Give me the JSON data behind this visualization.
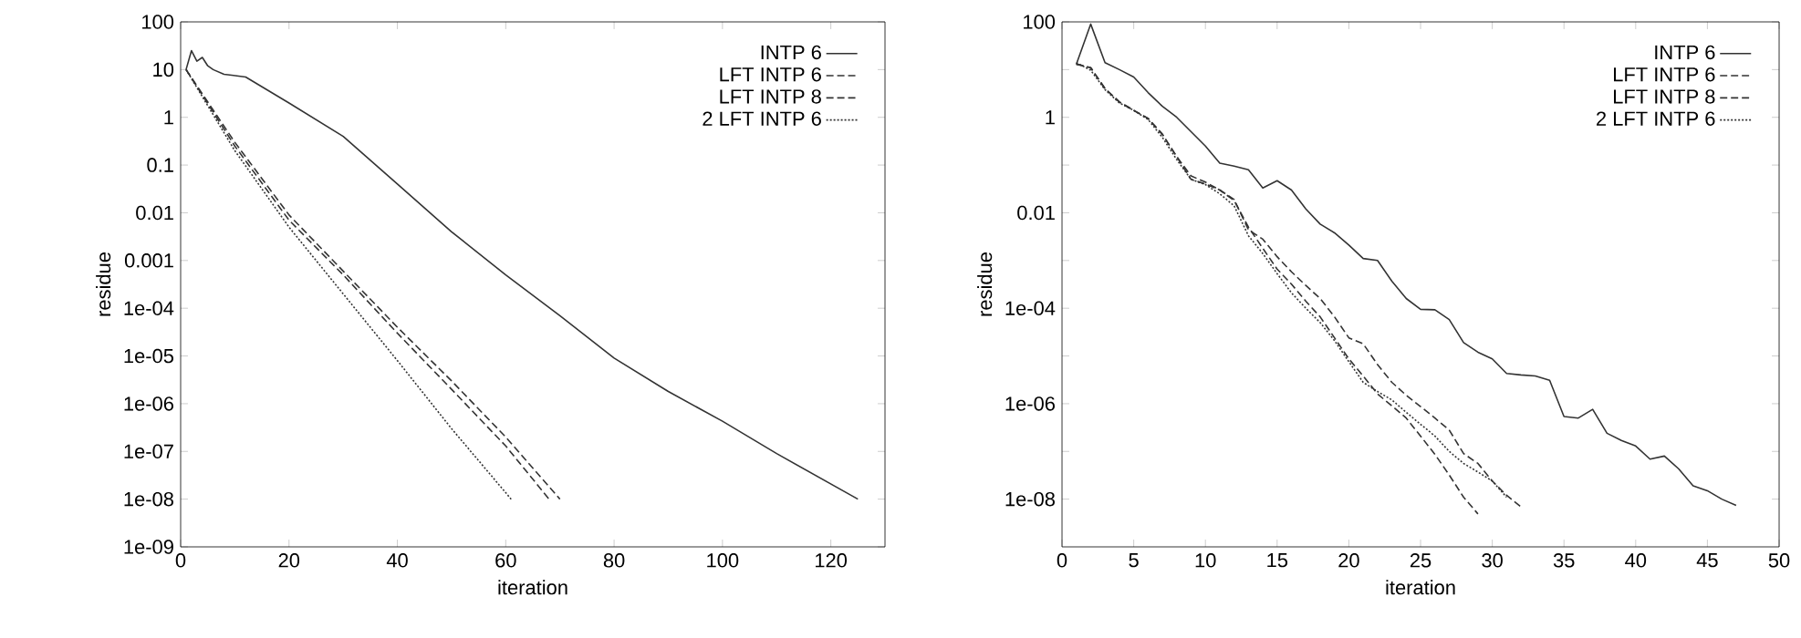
{
  "chart_data": [
    {
      "type": "line",
      "xlabel": "iteration",
      "ylabel": "residue",
      "log": "y",
      "legend": "top right",
      "xlim": [
        0,
        130
      ],
      "xticks": [
        0,
        20,
        40,
        60,
        80,
        100,
        120
      ],
      "ylim": [
        1e-09,
        100
      ],
      "yticks": [
        100,
        10,
        1,
        0.1,
        0.01,
        0.001,
        {
          "value": 0.0001,
          "label": "1e-04"
        },
        {
          "value": 1e-05,
          "label": "1e-05"
        },
        {
          "value": 1e-06,
          "label": "1e-06"
        },
        {
          "value": 1e-07,
          "label": "1e-07"
        },
        {
          "value": 1e-08,
          "label": "1e-08"
        },
        {
          "value": 1e-09,
          "label": "1e-09"
        }
      ],
      "series": [
        {
          "name": "INTP 6",
          "color": "#333333",
          "line_style": "solid",
          "x": [
            1,
            2,
            3,
            4,
            5,
            6,
            8,
            12,
            20,
            30,
            40,
            50,
            60,
            70,
            80,
            90,
            100,
            110,
            125
          ],
          "values": [
            10,
            25,
            15,
            18,
            12,
            10,
            8,
            7,
            2,
            0.4,
            0.04,
            0.004,
            0.0005,
            7e-05,
            9e-06,
            1.8e-06,
            4.3e-07,
            9e-08,
            1e-08
          ]
        },
        {
          "name": "LFT INTP 6",
          "color": "#333333",
          "line_style": "dashed",
          "x": [
            1,
            10,
            20,
            30,
            40,
            50,
            60,
            70
          ],
          "values": [
            10,
            0.3,
            0.009,
            0.0006,
            4e-05,
            3e-06,
            2e-07,
            1e-08
          ]
        },
        {
          "name": "LFT INTP 8",
          "color": "#333333",
          "line_style": "dashed",
          "x": [
            1,
            10,
            20,
            30,
            40,
            50,
            60,
            68
          ],
          "values": [
            10,
            0.25,
            0.007,
            0.0005,
            3e-05,
            2e-06,
            1.3e-07,
            1e-08
          ]
        },
        {
          "name": "2 LFT INTP 6",
          "color": "#333333",
          "line_style": "dotted",
          "x": [
            1,
            10,
            20,
            30,
            40,
            50,
            61
          ],
          "values": [
            10,
            0.2,
            0.005,
            0.0002,
            8e-06,
            3e-07,
            1e-08
          ]
        }
      ]
    },
    {
      "type": "line",
      "xlabel": "iteration",
      "ylabel": "residue",
      "log": "y",
      "legend": "top right",
      "xlim": [
        0,
        50
      ],
      "xticks": [
        0,
        5,
        10,
        15,
        20,
        25,
        30,
        35,
        40,
        45,
        50
      ],
      "ylim": [
        1e-09,
        100
      ],
      "yticks": [
        100,
        {
          "value": 10,
          "label": null
        },
        1,
        {
          "value": 0.1,
          "label": null
        },
        0.01,
        {
          "value": 0.001,
          "label": null
        },
        {
          "value": 0.0001,
          "label": "1e-04"
        },
        {
          "value": 1e-05,
          "label": null
        },
        {
          "value": 1e-06,
          "label": "1e-06"
        },
        {
          "value": 1e-07,
          "label": null
        },
        {
          "value": 1e-08,
          "label": "1e-08"
        }
      ],
      "series": [
        {
          "name": "INTP 6",
          "color": "#333333",
          "line_style": "solid",
          "x": [
            1,
            2,
            3,
            4,
            5,
            6,
            7,
            8,
            9,
            10,
            11,
            12,
            13,
            14,
            15,
            16,
            17,
            18,
            19,
            20,
            21,
            22,
            23,
            24,
            25,
            26,
            27,
            28,
            29,
            30,
            31,
            32,
            33,
            34,
            35,
            36,
            37,
            38,
            39,
            40,
            41,
            42,
            43,
            44,
            45,
            46,
            47
          ],
          "values": [
            13,
            90,
            14,
            10,
            7,
            3.3,
            1.7,
            1.0,
            0.5,
            0.25,
            0.11,
            0.095,
            0.08,
            0.033,
            0.047,
            0.03,
            0.012,
            0.0058,
            0.0038,
            0.0021,
            0.0011,
            0.001,
            0.00037,
            0.00016,
            9.5e-05,
            9.3e-05,
            5.8e-05,
            1.9e-05,
            1.2e-05,
            8.7e-06,
            4.3e-06,
            4e-06,
            3.8e-06,
            3.1e-06,
            5.4e-07,
            5e-07,
            7.6e-07,
            2.4e-07,
            1.7e-07,
            1.3e-07,
            6.9e-08,
            8e-08,
            4.3e-08,
            1.9e-08,
            1.5e-08,
            1e-08,
            7.4e-09
          ]
        },
        {
          "name": "LFT INTP 6",
          "color": "#333333",
          "line_style": "dashed",
          "x": [
            1,
            2,
            3,
            4,
            5,
            6,
            7,
            8,
            9,
            10,
            11,
            12,
            13,
            14,
            15,
            16,
            17,
            18,
            19,
            20,
            21,
            22,
            23,
            24,
            25,
            26,
            27,
            28,
            29,
            30,
            31,
            32
          ],
          "values": [
            13,
            11,
            4,
            2.1,
            1.4,
            0.95,
            0.44,
            0.15,
            0.059,
            0.044,
            0.03,
            0.019,
            0.0044,
            0.0028,
            0.0012,
            0.00058,
            0.0003,
            0.00016,
            6.6e-05,
            2.4e-05,
            1.8e-05,
            6.6e-06,
            2.8e-06,
            1.5e-06,
            8.7e-07,
            5e-07,
            2.8e-07,
            9e-08,
            5.6e-08,
            2.4e-08,
            1.2e-08,
            6.9e-09
          ]
        },
        {
          "name": "LFT INTP 8",
          "color": "#333333",
          "line_style": "dashed",
          "x": [
            1,
            2,
            3,
            4,
            5,
            6,
            7,
            8,
            9,
            10,
            11,
            12,
            13,
            14,
            15,
            16,
            17,
            18,
            19,
            20,
            21,
            22,
            23,
            24,
            25,
            26,
            27,
            28,
            29
          ],
          "values": [
            13,
            11,
            4,
            2.1,
            1.4,
            0.95,
            0.44,
            0.15,
            0.05,
            0.04,
            0.03,
            0.018,
            0.005,
            0.0018,
            0.00066,
            0.00032,
            0.00014,
            6.6e-05,
            2.4e-05,
            8.7e-06,
            3.8e-06,
            1.6e-06,
            9e-07,
            5e-07,
            2.1e-07,
            8.7e-08,
            3.2e-08,
            1.1e-08,
            4.9e-09
          ]
        },
        {
          "name": "2 LFT INTP 6",
          "color": "#333333",
          "line_style": "dotted",
          "x": [
            1,
            2,
            3,
            4,
            5,
            6,
            7,
            8,
            9,
            10,
            11,
            12,
            13,
            14,
            15,
            16,
            17,
            18,
            19,
            20,
            21,
            22,
            23,
            24,
            25,
            26,
            27,
            28,
            29,
            30,
            31
          ],
          "values": [
            14,
            9.7,
            3.8,
            2,
            1.4,
            0.9,
            0.38,
            0.13,
            0.05,
            0.039,
            0.025,
            0.014,
            0.0033,
            0.0014,
            0.00053,
            0.00021,
            0.0001,
            5e-05,
            2.1e-05,
            7.6e-06,
            2.8e-06,
            1.8e-06,
            1.2e-06,
            6.6e-07,
            3.7e-07,
            2.1e-07,
            1e-07,
            5.6e-08,
            3.7e-08,
            2.4e-08,
            1.1e-08
          ]
        }
      ]
    }
  ]
}
